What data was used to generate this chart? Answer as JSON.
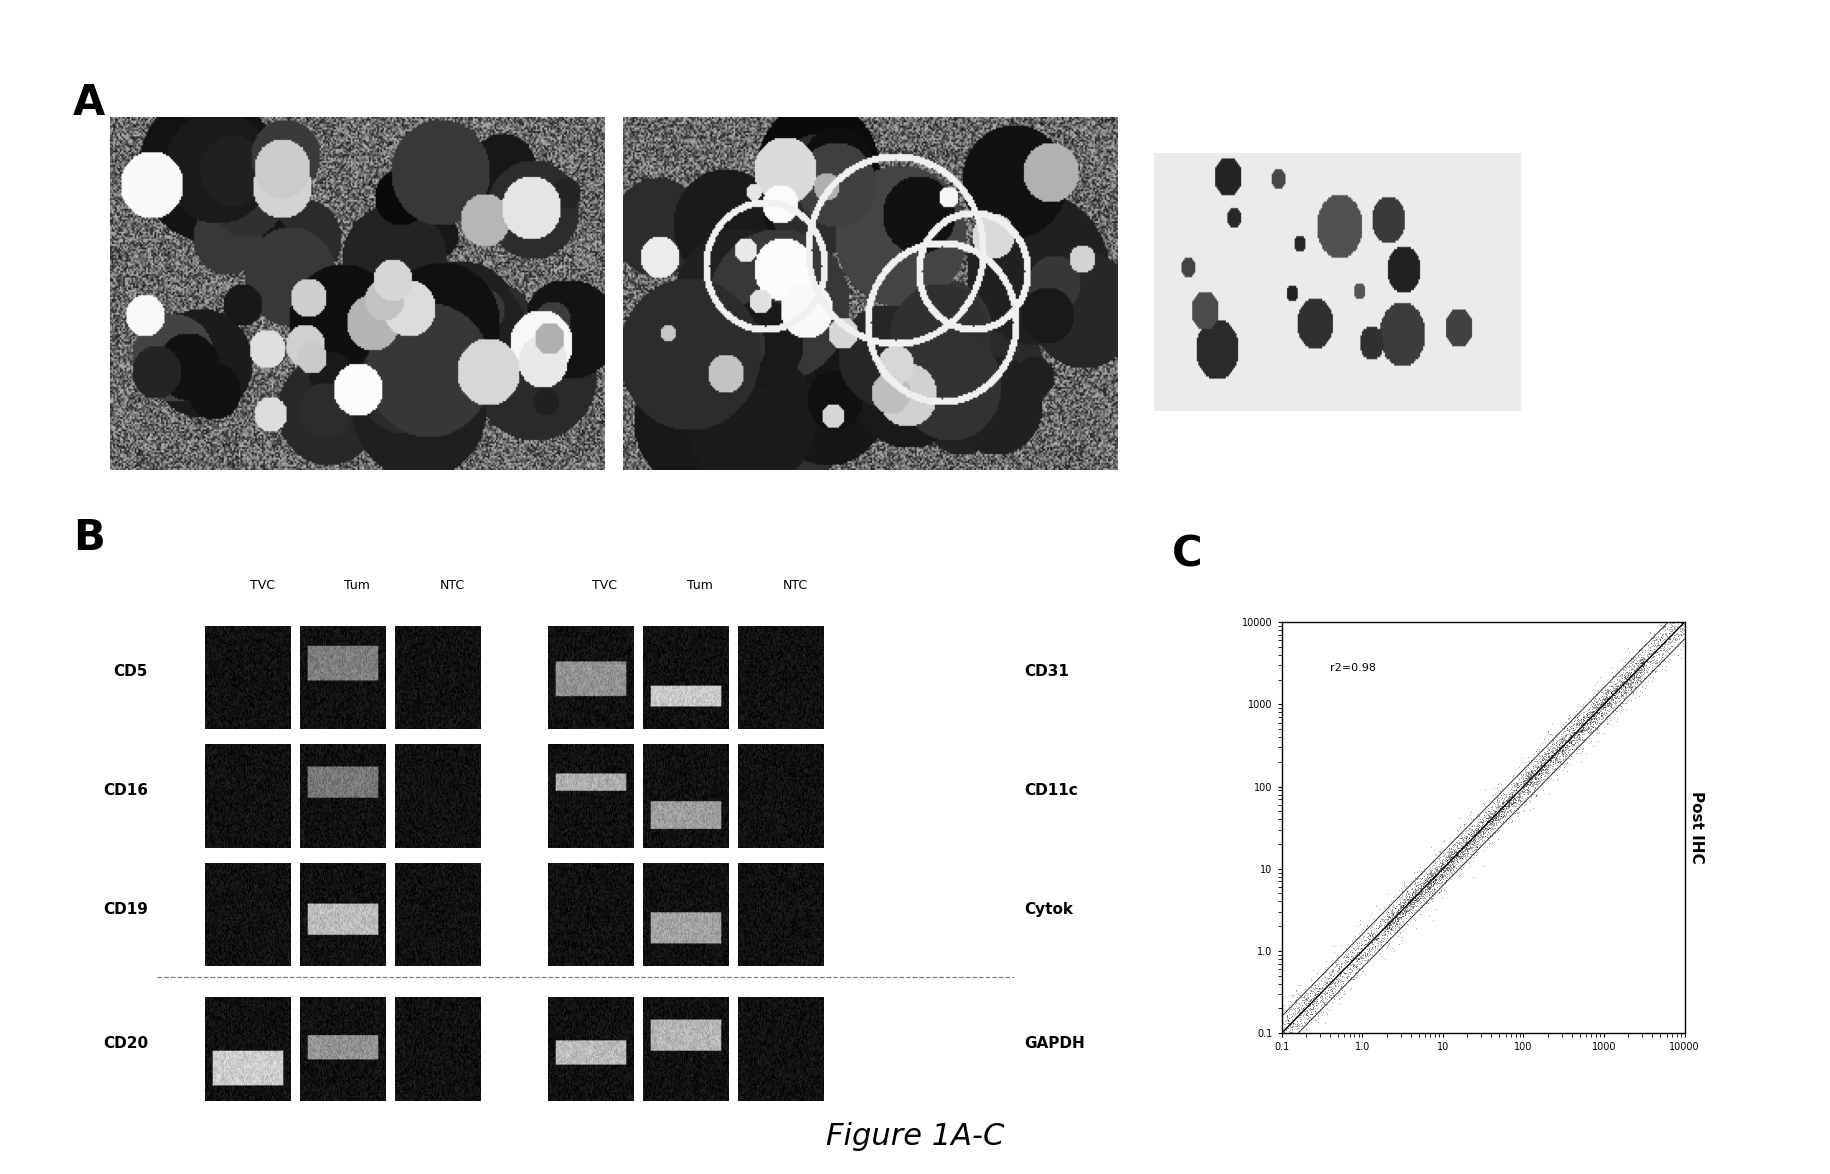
{
  "figure_title": "Figure 1A-C",
  "panel_A_label": "A",
  "panel_B_label": "B",
  "panel_C_label": "C",
  "background_color": "#ffffff",
  "panel_B_rows": [
    "CD5",
    "CD16",
    "CD19",
    "CD20"
  ],
  "panel_B_right_labels": [
    "CD31",
    "CD11c",
    "Cytok",
    "GAPDH"
  ],
  "panel_B_col_headers": [
    "TVC",
    "Tum",
    "NTC",
    "TVC",
    "Tum",
    "NTC"
  ],
  "panel_C_annotation": "r2=0.98",
  "panel_C_ylabel": "Post IHC",
  "scatter_n": 5000,
  "scatter_seed": 42
}
